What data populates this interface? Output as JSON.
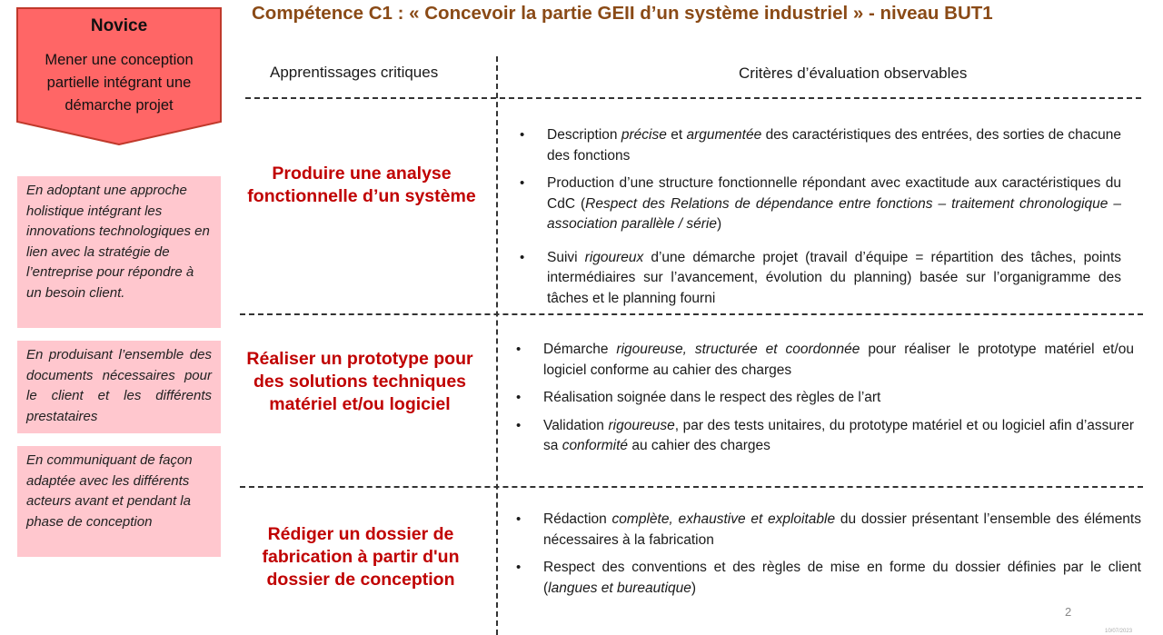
{
  "title": "Compétence C1 : « Concevoir la partie GEII d’un système industriel » - niveau BUT1",
  "novice": {
    "level": "Novice",
    "description": "Mener une conception partielle intégrant une démarche projet"
  },
  "context_boxes": [
    "En adoptant une approche holistique intégrant les innovations technologiques en lien avec la stratégie de l’entreprise pour répondre à un besoin client.",
    "En produisant l’ensemble des documents nécessaires pour le client et les différents prestataires",
    "En communiquant de façon adaptée avec les différents acteurs avant et pendant la phase de conception"
  ],
  "columns": {
    "left": "Apprentissages critiques",
    "right": "Critères d’évaluation observables"
  },
  "rows": [
    {
      "learning": "Produire une analyse fonctionnelle d’un système",
      "criteria": [
        [
          {
            "t": "Description "
          },
          {
            "t": "précise",
            "i": true
          },
          {
            "t": " et "
          },
          {
            "t": "argumentée",
            "i": true
          },
          {
            "t": " des caractéristiques des entrées, des sorties de chacune des fonctions"
          }
        ],
        [
          {
            "t": "Production d’une structure fonctionnelle répondant avec exactitude aux caractéristiques du CdC ("
          },
          {
            "t": "Respect des Relations de dépendance entre fonctions – traitement chronologique – association parallèle / série",
            "i": true
          },
          {
            "t": ")"
          }
        ],
        [
          {
            "t": "Suivi "
          },
          {
            "t": "rigoureux",
            "i": true
          },
          {
            "t": " d’une démarche projet (travail d’équipe = répartition des tâches, points intermédiaires sur l’avancement, évolution du planning) basée sur l’organigramme des tâches et le planning fourni"
          }
        ]
      ]
    },
    {
      "learning": "Réaliser un prototype pour des solutions techniques matériel et/ou logiciel",
      "criteria": [
        [
          {
            "t": "Démarche "
          },
          {
            "t": "rigoureuse, structurée et coordonnée",
            "i": true
          },
          {
            "t": " pour réaliser  le prototype matériel et/ou logiciel conforme au cahier des charges"
          }
        ],
        [
          {
            "t": "Réalisation soignée dans le respect des règles de l’art"
          }
        ],
        [
          {
            "t": "Validation "
          },
          {
            "t": "rigoureuse",
            "i": true
          },
          {
            "t": ", par des tests unitaires, du prototype matériel et ou logiciel afin d’assurer sa "
          },
          {
            "t": "conformité",
            "i": true
          },
          {
            "t": " au cahier des charges"
          }
        ]
      ]
    },
    {
      "learning": "Rédiger un dossier de fabrication à partir d'un dossier de conception",
      "criteria": [
        [
          {
            "t": "Rédaction "
          },
          {
            "t": "complète, exhaustive et exploitable",
            "i": true
          },
          {
            "t": " du dossier présentant l’ensemble des éléments  nécessaires à la fabrication"
          }
        ],
        [
          {
            "t": "Respect des conventions et des règles de mise en forme du dossier définies par le client ("
          },
          {
            "t": "langues et bureautique",
            "i": true
          },
          {
            "t": ")"
          }
        ]
      ]
    }
  ],
  "page_number": "2",
  "date": "10/07/2023"
}
